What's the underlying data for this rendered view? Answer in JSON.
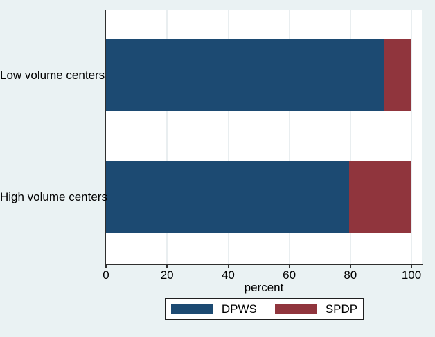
{
  "figure": {
    "background_color": "#eaf2f3",
    "plot_background_color": "#ffffff",
    "grid_color": "#e9eef0",
    "axis_color": "#2f2f2f",
    "text_color": "#000000"
  },
  "chart_data": {
    "type": "bar",
    "orientation": "horizontal",
    "stacked": true,
    "title": "",
    "xlabel": "percent",
    "ylabel": "",
    "categories": [
      "Low volume centers",
      "High volume centers"
    ],
    "series": [
      {
        "name": "DPWS",
        "color": "#1c4a72",
        "values": [
          91,
          79.5
        ]
      },
      {
        "name": "SPDP",
        "color": "#90353d",
        "values": [
          9,
          20.5
        ]
      }
    ],
    "xlim": [
      0,
      103.4
    ],
    "xticks": [
      0,
      20,
      40,
      60,
      80,
      100
    ],
    "grid": true,
    "legend_position": "bottom"
  }
}
